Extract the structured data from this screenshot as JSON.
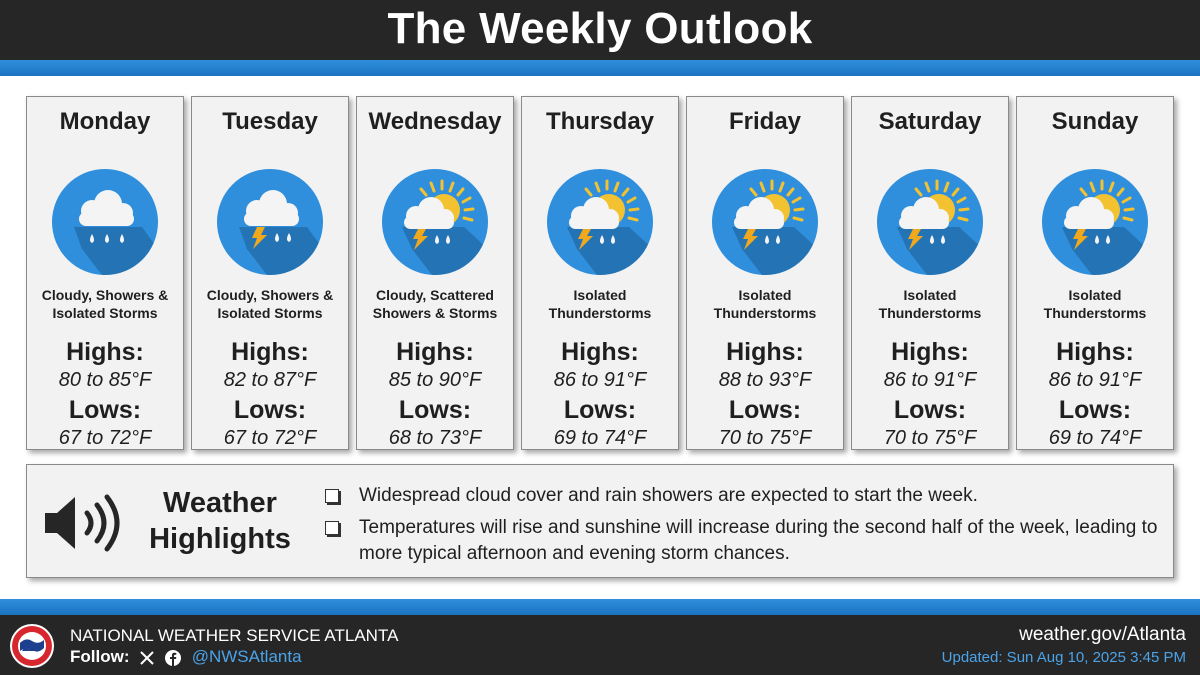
{
  "header": {
    "title": "The Weekly Outlook"
  },
  "days": [
    {
      "name": "Monday",
      "icon": "cloud-rain-icon",
      "condition_line1": "Cloudy, Showers &",
      "condition_line2": "Isolated Storms",
      "highs_label": "Highs:",
      "highs": "80 to 85°F",
      "lows_label": "Lows:",
      "lows": "67 to 72°F"
    },
    {
      "name": "Tuesday",
      "icon": "cloud-storm-icon",
      "condition_line1": "Cloudy, Showers &",
      "condition_line2": "Isolated Storms",
      "highs_label": "Highs:",
      "highs": "82 to 87°F",
      "lows_label": "Lows:",
      "lows": "67 to 72°F"
    },
    {
      "name": "Wednesday",
      "icon": "sun-cloud-storm-icon",
      "condition_line1": "Cloudy, Scattered",
      "condition_line2": "Showers & Storms",
      "highs_label": "Highs:",
      "highs": "85 to 90°F",
      "lows_label": "Lows:",
      "lows": "68 to 73°F"
    },
    {
      "name": "Thursday",
      "icon": "sun-cloud-storm-icon",
      "condition_line1": "Isolated",
      "condition_line2": "Thunderstorms",
      "highs_label": "Highs:",
      "highs": "86 to 91°F",
      "lows_label": "Lows:",
      "lows": "69 to 74°F"
    },
    {
      "name": "Friday",
      "icon": "sun-cloud-storm-icon",
      "condition_line1": "Isolated",
      "condition_line2": "Thunderstorms",
      "highs_label": "Highs:",
      "highs": "88 to 93°F",
      "lows_label": "Lows:",
      "lows": "70 to 75°F"
    },
    {
      "name": "Saturday",
      "icon": "sun-cloud-storm-icon",
      "condition_line1": "Isolated",
      "condition_line2": "Thunderstorms",
      "highs_label": "Highs:",
      "highs": "86 to 91°F",
      "lows_label": "Lows:",
      "lows": "70 to 75°F"
    },
    {
      "name": "Sunday",
      "icon": "sun-cloud-storm-icon",
      "condition_line1": "Isolated",
      "condition_line2": "Thunderstorms",
      "highs_label": "Highs:",
      "highs": "86 to 91°F",
      "lows_label": "Lows:",
      "lows": "69 to 74°F"
    }
  ],
  "highlights": {
    "title_line1": "Weather",
    "title_line2": "Highlights",
    "icon": "speaker-icon",
    "bullets": [
      "Widespread cloud cover and rain showers are expected to start the week.",
      "Temperatures will rise and sunshine will increase during the second half of the week, leading to more typical afternoon and evening storm chances."
    ]
  },
  "footer": {
    "org_name": "NATIONAL WEATHER SERVICE ATLANTA",
    "follow_label": "Follow:",
    "social_icons": [
      "x-icon",
      "facebook-icon"
    ],
    "handle": "@NWSAtlanta",
    "website": "weather.gov/Atlanta",
    "updated": "Updated: Sun Aug 10, 2025 3:45 PM"
  },
  "colors": {
    "band_blue": "#1f7cc9",
    "icon_circle": "#2f8fdc",
    "sun": "#f2c230",
    "bolt": "#f0a81c",
    "link_blue": "#4ba3e8"
  }
}
